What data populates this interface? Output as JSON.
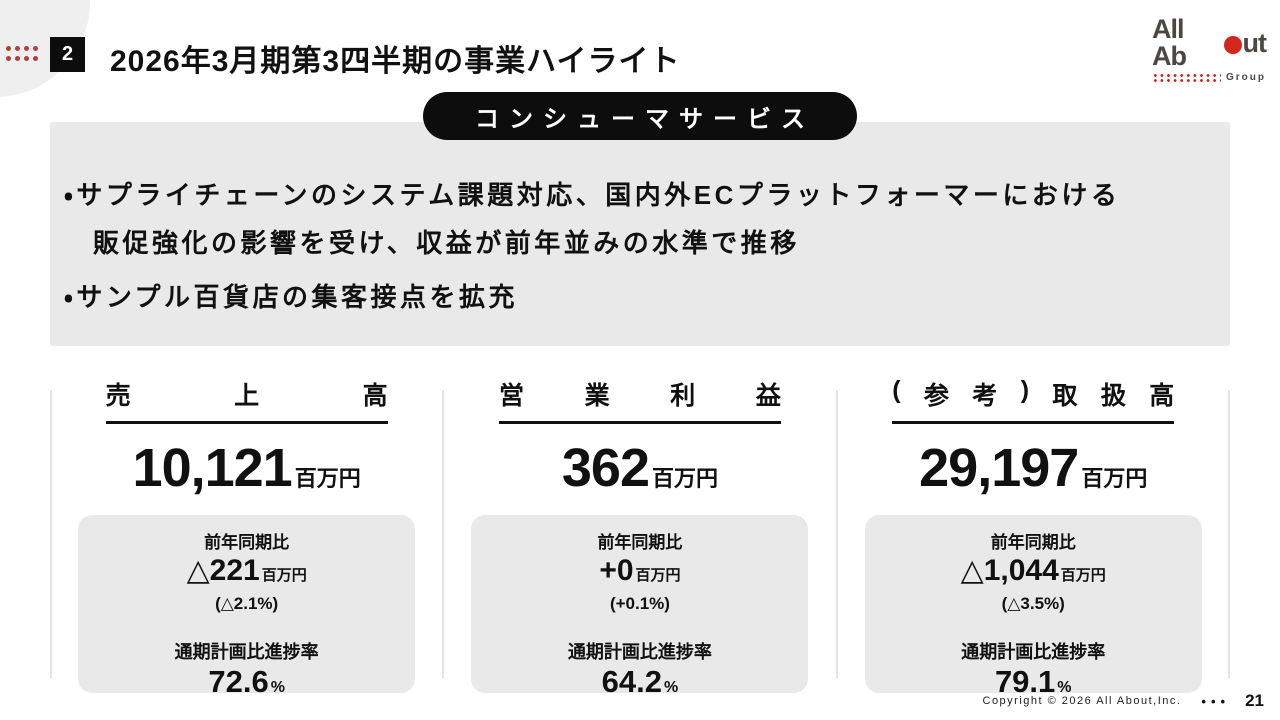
{
  "slide": {
    "badge_number": "2",
    "title": "2026年3月期第3四半期の事業ハイライト",
    "section_pill": "コンシューマサービス",
    "bullets": [
      "・サプライチェーンのシステム課題対応、国内外ECプラットフォーマーにおける",
      "販促強化の影響を受け、収益が前年並みの水準で推移",
      "・サンプル百貨店の集客接点を拡充"
    ]
  },
  "logo": {
    "word_left": "All Ab",
    "word_right": "ut",
    "group_label": "Group"
  },
  "metrics": [
    {
      "title": "売上高",
      "value": "10,121",
      "unit": "百万円",
      "yoy_label": "前年同期比",
      "yoy_value": "△221",
      "yoy_unit": "百万円",
      "yoy_pct": "(△2.1%)",
      "progress_label": "通期計画比進捗率",
      "progress_value": "72.6",
      "progress_unit": "%"
    },
    {
      "title": "営業利益",
      "value": "362",
      "unit": "百万円",
      "yoy_label": "前年同期比",
      "yoy_value": "+0",
      "yoy_unit": "百万円",
      "yoy_pct": "(+0.1%)",
      "progress_label": "通期計画比進捗率",
      "progress_value": "64.2",
      "progress_unit": "%"
    },
    {
      "title": "(参考)取扱高",
      "value": "29,197",
      "unit": "百万円",
      "yoy_label": "前年同期比",
      "yoy_value": "△1,044",
      "yoy_unit": "百万円",
      "yoy_pct": "(△3.5%)",
      "progress_label": "通期計画比進捗率",
      "progress_value": "79.1",
      "progress_unit": "%"
    }
  ],
  "footer": {
    "copyright": "Copyright © 2026 All About,Inc.",
    "dots": "•••",
    "page_number": "21"
  },
  "colors": {
    "accent_red": "#b2403a",
    "logo_red": "#d3271c",
    "panel_gray": "#e9e9e9",
    "ink_black": "#0d0d0d"
  }
}
